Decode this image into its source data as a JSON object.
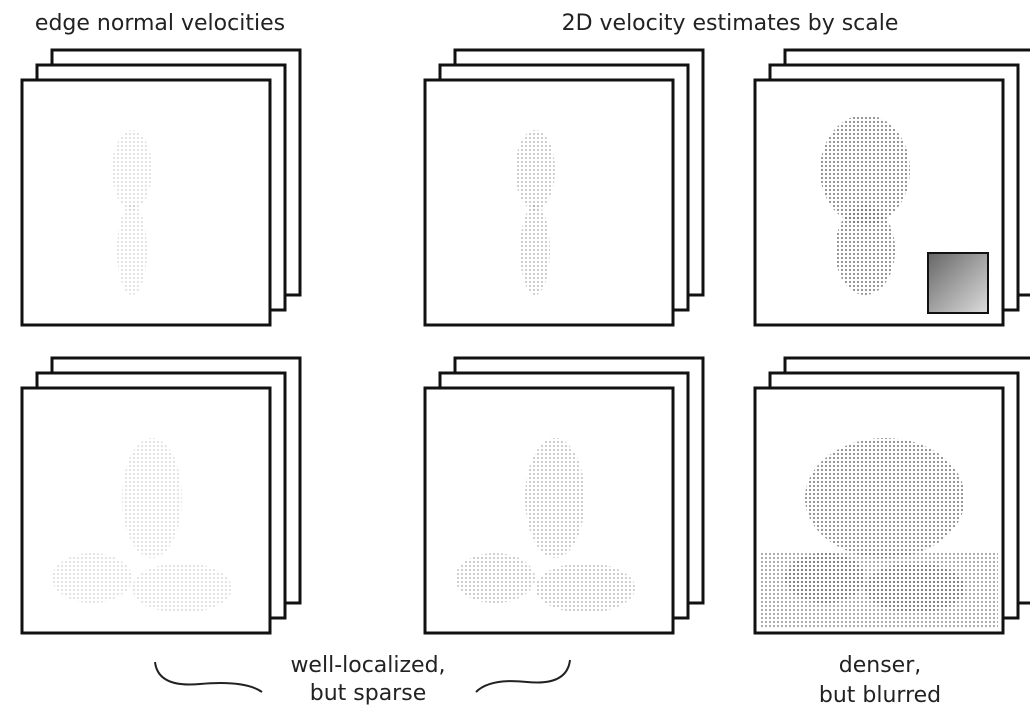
{
  "headings": [
    "edge normal velocities",
    "2D velocity estimates by scale"
  ],
  "annotations": [
    {
      "lines": [
        "well-localized,",
        "but sparse"
      ]
    },
    {
      "lines": [
        "denser,",
        "but blurred"
      ]
    }
  ]
}
